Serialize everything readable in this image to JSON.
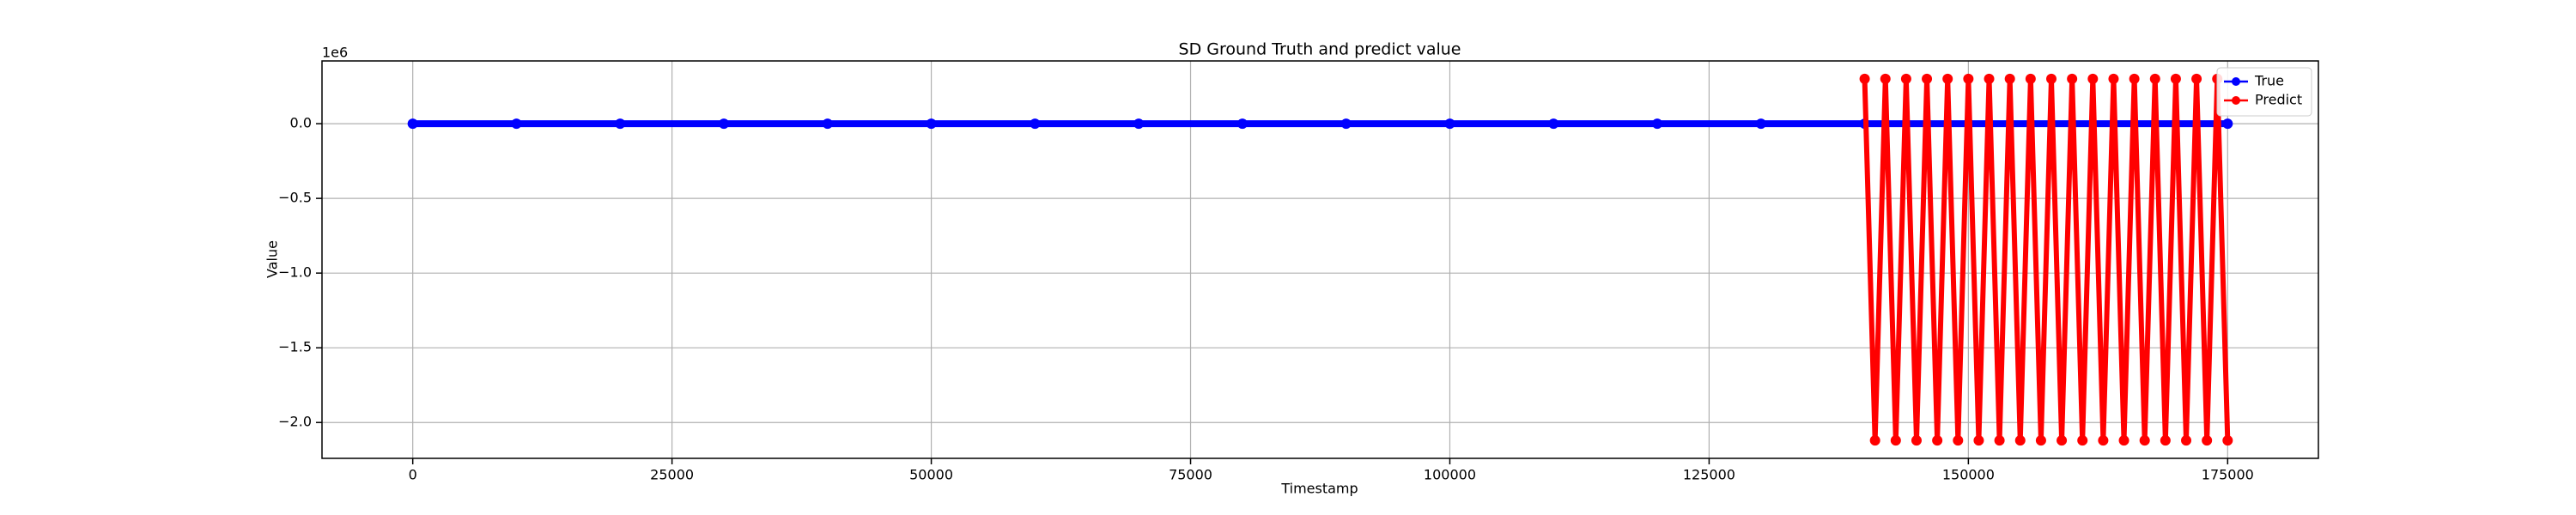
{
  "chart_data": {
    "type": "line",
    "title": "SD Ground Truth and predict value",
    "x_label": "Timestamp",
    "y_label": "Value",
    "y_offset_label": "1e6",
    "xlim": [
      -8750,
      183750
    ],
    "ylim": [
      -2240000,
      420000
    ],
    "xticks": [
      0,
      25000,
      50000,
      75000,
      100000,
      125000,
      150000,
      175000
    ],
    "yticks": [
      {
        "value": 0,
        "label": "0.0"
      },
      {
        "value": -500000,
        "label": "−0.5"
      },
      {
        "value": -1000000,
        "label": "−1.0"
      },
      {
        "value": -1500000,
        "label": "−1.5"
      },
      {
        "value": -2000000,
        "label": "−2.0"
      }
    ],
    "grid": true,
    "legend": "upper right",
    "series": [
      {
        "name": "True",
        "color": "#0000ff",
        "x": [
          0,
          10000,
          20000,
          30000,
          40000,
          50000,
          60000,
          70000,
          80000,
          90000,
          100000,
          110000,
          120000,
          130000,
          140000,
          150000,
          160000,
          170000,
          175000
        ],
        "values": [
          0,
          0,
          0,
          0,
          0,
          0,
          0,
          0,
          0,
          0,
          0,
          0,
          0,
          0,
          0,
          0,
          0,
          0,
          0
        ]
      },
      {
        "name": "Predict",
        "color": "#ff0000",
        "x": [
          140000,
          141000,
          142000,
          143000,
          144000,
          145000,
          146000,
          147000,
          148000,
          149000,
          150000,
          151000,
          152000,
          153000,
          154000,
          155000,
          156000,
          157000,
          158000,
          159000,
          160000,
          161000,
          162000,
          163000,
          164000,
          165000,
          166000,
          167000,
          168000,
          169000,
          170000,
          171000,
          172000,
          173000,
          174000,
          175000
        ],
        "values": [
          300000,
          -2120000,
          300000,
          -2120000,
          300000,
          -2120000,
          300000,
          -2120000,
          300000,
          -2120000,
          300000,
          -2120000,
          300000,
          -2120000,
          300000,
          -2120000,
          300000,
          -2120000,
          300000,
          -2120000,
          300000,
          -2120000,
          300000,
          -2120000,
          300000,
          -2120000,
          300000,
          -2120000,
          300000,
          -2120000,
          300000,
          -2120000,
          300000,
          -2120000,
          300000,
          -2120000
        ]
      }
    ]
  }
}
